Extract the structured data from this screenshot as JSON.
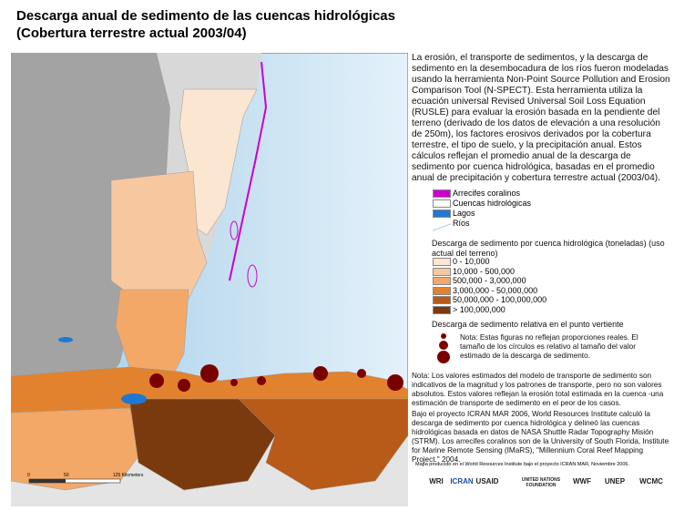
{
  "title": [
    "Descarga anual de sedimento de las cuencas hidrológicas",
    "(Cobertura terrestre actual 2003/04)"
  ],
  "description": "La erosión, el transporte de sedimentos, y la descarga de sedimento en la desembocadura  de los ríos fueron modeladas usando la herramienta Non-Point Source Pollution and Erosion Comparison Tool (N-SPECT). Esta herramienta utiliza la ecuación universal Revised Universal Soil Loss Equation (RUSLE) para evaluar la erosión basada en la pendiente del terreno (derivado de los datos de elevación a una resolución de 250m), los factores erosivos derivados por la cobertura terrestre, el tipo de suelo, y la precipitación anual. Estos cálculos reflejan el promedio anual de la descarga de sedimento por cuenca hidrológica, basadas en el promedio anual de precipitación y cobertura terrestre actual (2003/04).",
  "legend": [
    {
      "label": "Arrecifes coralinos",
      "color": "#cc00cc"
    },
    {
      "label": "Cuencas hidrológicas",
      "color": "#ffffff"
    },
    {
      "label": "Lagos",
      "color": "#1e78d2"
    },
    {
      "label": "Ríos",
      "color": "#9cc8e8"
    }
  ],
  "classes_title": "Descarga de sedimento por cuenca hidrológica (toneladas) (uso actual del terreno)",
  "classes": [
    {
      "label": "0 - 10,000",
      "color": "#fbe6d2"
    },
    {
      "label": "10,000 - 500,000",
      "color": "#f7c8a0"
    },
    {
      "label": "500,000 - 3,000,000",
      "color": "#f3a868"
    },
    {
      "label": "3,000,000 - 50,000,000",
      "color": "#e2822e"
    },
    {
      "label": "50,000,000 - 100,000,000",
      "color": "#b85a18"
    },
    {
      "label": "> 100,000,000",
      "color": "#7a3a0e"
    }
  ],
  "circles_title": "Descarga de sedimento relativa en el punto vertiente",
  "circles_note": "Nota: Estas figuras no reflejan proporciones reales. El tamaño de los círculos es relativo al tamaño del valor estimado de la descarga de sedimento.",
  "note": "Nota: Los valores estimados del modelo de transporte de sedimento son indicativos de la magnitud y los patrones de transporte, pero no son valores absolutos. Estos valores reflejan la erosión total estimada en la cuenca -una estimación de transporte de sedimento en el peor de los casos.",
  "credits": "Bajo el proyecto ICRAN MAR 2006, World Resources Institute calculó la descarga de sedimento por cuenca hidrológica y delineó las cuencas hidrológicas basada en datos de NASA Shuttle Radar Topography Misión (STRM). Los arrecifes coralinos son de la University of South Florida, Institute for Marine Remote Sensing (IMaRS), \"Millennium Coral Reef Mapping Project.\" 2004.",
  "produced": "Mapa producido en el World Resources Institute bajo el proyecto ICRAN MAR, Noviembre 2006.",
  "scale": [
    "0",
    "50",
    "125 Kilometers"
  ],
  "logos": [
    "WRI",
    "ICRAN",
    "USAID",
    "UNITED NATIONS FOUNDATION",
    "WWF",
    "UNEP",
    "WCMC"
  ]
}
